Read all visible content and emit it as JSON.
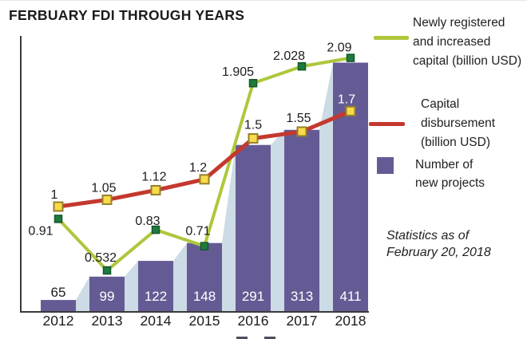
{
  "title": "FERBUARY FDI THROUGH YEARS",
  "note": {
    "lines": [
      "Statistics as of",
      "February 20, 2018"
    ]
  },
  "legend": {
    "items": [
      {
        "swatch": "line-green",
        "lines": [
          "Newly registered",
          "and increased",
          "capital (billion USD)"
        ]
      },
      {
        "swatch": "line-red",
        "lines": [
          "Capital",
          "disbursement",
          "(billion USD)"
        ]
      },
      {
        "swatch": "square-purple",
        "lines": [
          "Number of",
          "new projects"
        ]
      }
    ]
  },
  "colors": {
    "bar": "#655b94",
    "area_backdrop": "#ccdbe5",
    "green_line": "#aec73d",
    "green_marker": "#1e7b3d",
    "green_marker_border": "#14572a",
    "red_line": "#c4382e",
    "yellow_marker": "#f9da4a",
    "yellow_marker_border": "#95812b",
    "axis": "#3a3a3a",
    "label_dark": "#1c1c1c",
    "label_white": "#ffffff"
  },
  "chart_data": {
    "type": "combo-bar-line",
    "title": "FERBUARY FDI THROUGH YEARS",
    "categories": [
      "2012",
      "2013",
      "2014",
      "2015",
      "2016",
      "2017",
      "2018"
    ],
    "series": [
      {
        "name": "Number of new projects",
        "type": "bar",
        "values": [
          65,
          99,
          122,
          148,
          291,
          313,
          411
        ],
        "labels": [
          "65",
          "99",
          "122",
          "148",
          "291",
          "313",
          "411"
        ]
      },
      {
        "name": "Newly registered and increased capital (billion USD)",
        "type": "line",
        "values": [
          0.91,
          0.532,
          0.83,
          0.71,
          1.905,
          2.028,
          2.09
        ],
        "labels": [
          "0.91",
          "0.532",
          "0.83",
          "0.71",
          "1.905",
          "2.028",
          "2.09"
        ]
      },
      {
        "name": "Capital disbursement (billion USD)",
        "type": "line",
        "values": [
          1,
          1.05,
          1.12,
          1.2,
          1.5,
          1.55,
          1.7
        ],
        "labels": [
          "1",
          "1.05",
          "1.12",
          "1.2",
          "1.5",
          "1.55",
          "1.7"
        ]
      }
    ],
    "xlabel": "",
    "ylabel": "",
    "legend_position": "right",
    "grid": false,
    "annotations": [
      "Statistics as of February 20, 2018"
    ]
  }
}
